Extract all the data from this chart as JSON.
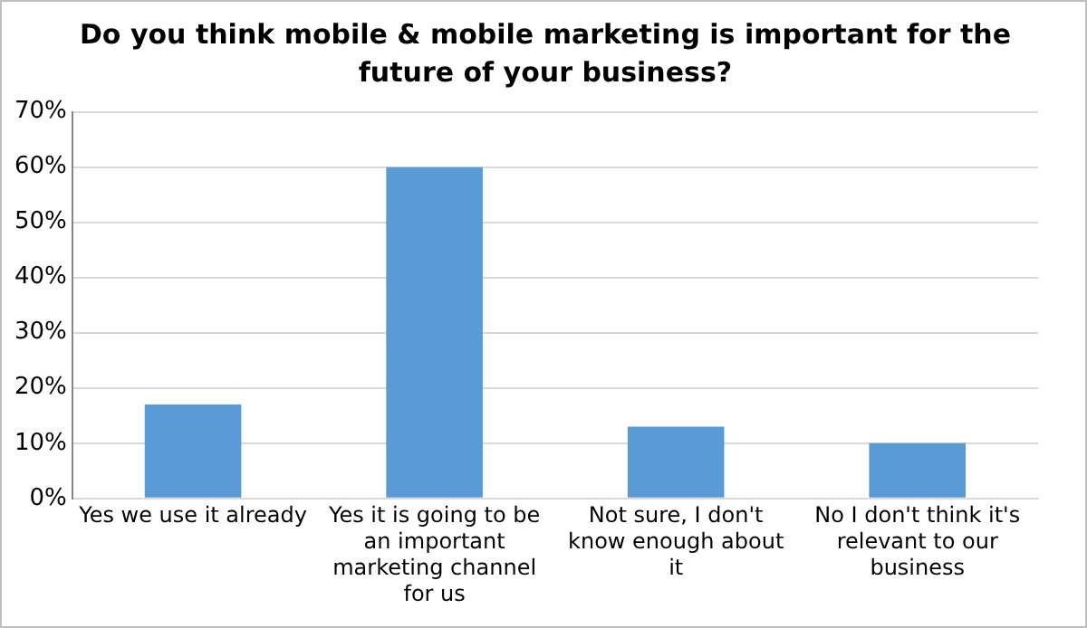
{
  "chart_data": {
    "type": "bar",
    "title": "Do you think mobile & mobile marketing is important for the future of your business?",
    "categories": [
      "Yes we use it already",
      "Yes it is going to be an important marketing channel for us",
      "Not sure, I don't know enough about it",
      "No I don't think it's relevant to our business"
    ],
    "values": [
      17,
      60,
      13,
      10
    ],
    "color": "#5b9bd5",
    "ylim": [
      0,
      70
    ],
    "yticks": [
      {
        "value": 0,
        "label": "0%"
      },
      {
        "value": 10,
        "label": "10%"
      },
      {
        "value": 20,
        "label": "20%"
      },
      {
        "value": 30,
        "label": "30%"
      },
      {
        "value": 40,
        "label": "40%"
      },
      {
        "value": 50,
        "label": "50%"
      },
      {
        "value": 60,
        "label": "60%"
      },
      {
        "value": 70,
        "label": "70%"
      }
    ],
    "grid": "y",
    "legend": false
  }
}
